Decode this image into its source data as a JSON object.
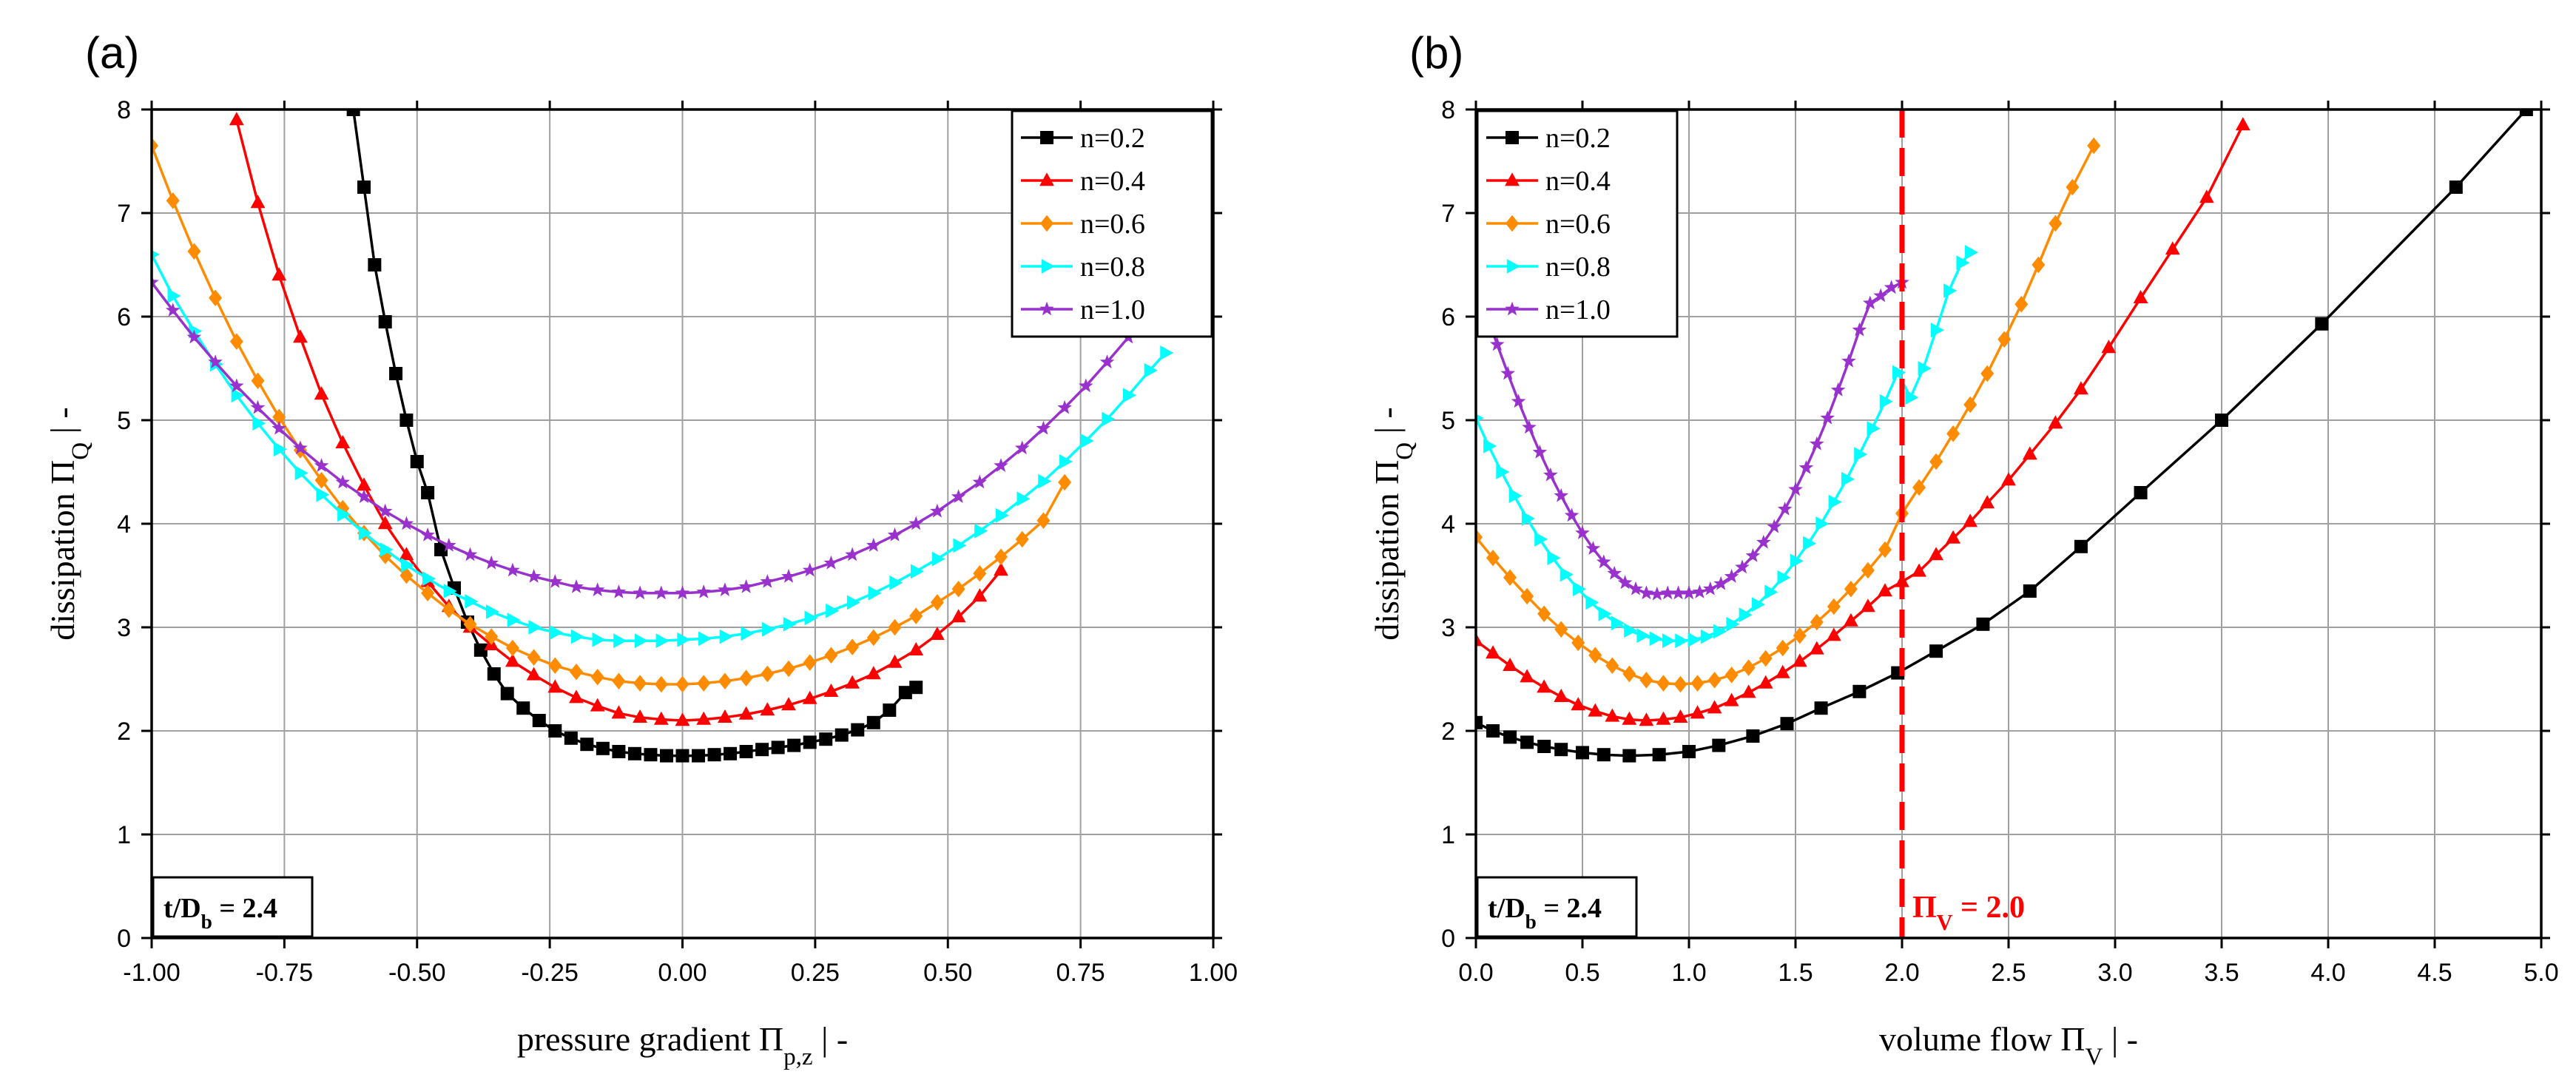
{
  "panels": [
    {
      "panel_label": "(a)",
      "annotation": {
        "main": "t/D",
        "sub": "b",
        "value": " = 2.4"
      },
      "legend": [
        "n=0.2",
        "n=0.4",
        "n=0.6",
        "n=0.8",
        "n=1.0"
      ]
    },
    {
      "panel_label": "(b)",
      "annotation": {
        "main": "t/D",
        "sub": "b",
        "value": " = 2.4"
      },
      "legend": [
        "n=0.2",
        "n=0.4",
        "n=0.6",
        "n=0.8",
        "n=1.0"
      ],
      "vline_label": {
        "main": "Π",
        "sub": "V",
        "value": " = 2.0"
      }
    }
  ],
  "colors": {
    "n=0.2": "#000000",
    "n=0.4": "#ff0000",
    "n=0.6": "#ff8c00",
    "n=0.8": "#00ffff",
    "n=1.0": "#9932cc",
    "vline": "#ff0000"
  },
  "chart_data": [
    {
      "type": "line",
      "xlabel": {
        "main": "pressure gradient Π",
        "sub": "p,z",
        "tail": " | -"
      },
      "ylabel": {
        "main": "dissipation Π",
        "sub": "Q",
        "tail": " | -"
      },
      "xlim": [
        -1.0,
        1.0
      ],
      "ylim": [
        0,
        8
      ],
      "xticks": [
        -1.0,
        -0.75,
        -0.5,
        -0.25,
        0.0,
        0.25,
        0.5,
        0.75,
        1.0
      ],
      "xtick_labels": [
        "-1.00",
        "-0.75",
        "-0.50",
        "-0.25",
        "0.00",
        "0.25",
        "0.50",
        "0.75",
        "1.00"
      ],
      "yticks": [
        0,
        1,
        2,
        3,
        4,
        5,
        6,
        7,
        8
      ],
      "ytick_labels": [
        "0",
        "1",
        "2",
        "3",
        "4",
        "5",
        "6",
        "7",
        "8"
      ],
      "grid": true,
      "legend_position": "top-right",
      "series": [
        {
          "name": "n=0.2",
          "marker": "square",
          "x": [
            -0.62,
            -0.6,
            -0.58,
            -0.56,
            -0.54,
            -0.52,
            -0.5,
            -0.48,
            -0.455,
            -0.43,
            -0.405,
            -0.38,
            -0.355,
            -0.33,
            -0.3,
            -0.27,
            -0.24,
            -0.21,
            -0.18,
            -0.15,
            -0.12,
            -0.09,
            -0.06,
            -0.03,
            0.0,
            0.03,
            0.06,
            0.09,
            0.12,
            0.15,
            0.18,
            0.21,
            0.24,
            0.27,
            0.3,
            0.33,
            0.36,
            0.39,
            0.42,
            0.44
          ],
          "y": [
            8.0,
            7.25,
            6.5,
            5.95,
            5.45,
            5.0,
            4.6,
            4.3,
            3.75,
            3.38,
            3.05,
            2.78,
            2.55,
            2.36,
            2.22,
            2.1,
            2.0,
            1.93,
            1.87,
            1.83,
            1.8,
            1.78,
            1.77,
            1.76,
            1.76,
            1.76,
            1.77,
            1.78,
            1.8,
            1.82,
            1.84,
            1.86,
            1.89,
            1.92,
            1.96,
            2.01,
            2.08,
            2.2,
            2.37,
            2.42
          ],
          "markers": [
            1,
            4,
            6,
            9,
            10,
            11,
            12,
            13,
            14,
            15,
            16,
            17,
            18,
            19,
            20,
            21,
            22,
            23,
            24,
            25,
            26,
            27,
            28,
            29,
            30,
            31,
            32,
            33,
            34,
            35,
            36,
            37,
            38,
            39
          ]
        },
        {
          "name": "n=0.4",
          "marker": "triangle-up",
          "x": [
            -0.84,
            -0.8,
            -0.76,
            -0.72,
            -0.68,
            -0.64,
            -0.6,
            -0.56,
            -0.52,
            -0.48,
            -0.44,
            -0.4,
            -0.36,
            -0.32,
            -0.28,
            -0.24,
            -0.2,
            -0.16,
            -0.12,
            -0.08,
            -0.04,
            0.0,
            0.04,
            0.08,
            0.12,
            0.16,
            0.2,
            0.24,
            0.28,
            0.32,
            0.36,
            0.4,
            0.44,
            0.48,
            0.52,
            0.56,
            0.6
          ],
          "y": [
            7.9,
            7.1,
            6.4,
            5.8,
            5.25,
            4.78,
            4.37,
            4.0,
            3.7,
            3.44,
            3.2,
            3.0,
            2.83,
            2.67,
            2.54,
            2.42,
            2.32,
            2.24,
            2.17,
            2.13,
            2.11,
            2.1,
            2.11,
            2.13,
            2.16,
            2.2,
            2.25,
            2.31,
            2.38,
            2.46,
            2.55,
            2.66,
            2.78,
            2.93,
            3.1,
            3.3,
            3.55
          ]
        },
        {
          "name": "n=0.6",
          "marker": "diamond",
          "x": [
            -1.0,
            -0.96,
            -0.92,
            -0.88,
            -0.84,
            -0.8,
            -0.76,
            -0.72,
            -0.68,
            -0.64,
            -0.6,
            -0.56,
            -0.52,
            -0.48,
            -0.44,
            -0.4,
            -0.36,
            -0.32,
            -0.28,
            -0.24,
            -0.2,
            -0.16,
            -0.12,
            -0.08,
            -0.04,
            0.0,
            0.04,
            0.08,
            0.12,
            0.16,
            0.2,
            0.24,
            0.28,
            0.32,
            0.36,
            0.4,
            0.44,
            0.48,
            0.52,
            0.56,
            0.6,
            0.64,
            0.68,
            0.72
          ],
          "y": [
            7.65,
            7.12,
            6.63,
            6.18,
            5.76,
            5.38,
            5.03,
            4.71,
            4.42,
            4.15,
            3.91,
            3.69,
            3.5,
            3.33,
            3.17,
            3.03,
            2.91,
            2.8,
            2.71,
            2.63,
            2.57,
            2.52,
            2.48,
            2.46,
            2.45,
            2.45,
            2.46,
            2.48,
            2.51,
            2.55,
            2.6,
            2.66,
            2.73,
            2.81,
            2.9,
            3.0,
            3.11,
            3.24,
            3.37,
            3.52,
            3.68,
            3.85,
            4.03,
            4.4
          ]
        },
        {
          "name": "n=0.8",
          "marker": "triangle-right",
          "x": [
            -1.0,
            -0.96,
            -0.92,
            -0.88,
            -0.84,
            -0.8,
            -0.76,
            -0.72,
            -0.68,
            -0.64,
            -0.6,
            -0.56,
            -0.52,
            -0.48,
            -0.44,
            -0.4,
            -0.36,
            -0.32,
            -0.28,
            -0.24,
            -0.2,
            -0.16,
            -0.12,
            -0.08,
            -0.04,
            0.0,
            0.04,
            0.08,
            0.12,
            0.16,
            0.2,
            0.24,
            0.28,
            0.32,
            0.36,
            0.4,
            0.44,
            0.48,
            0.52,
            0.56,
            0.6,
            0.64,
            0.68,
            0.72,
            0.76,
            0.8,
            0.84,
            0.88,
            0.91
          ],
          "y": [
            6.6,
            6.2,
            5.86,
            5.54,
            5.24,
            4.97,
            4.72,
            4.49,
            4.28,
            4.09,
            3.91,
            3.75,
            3.6,
            3.47,
            3.35,
            3.25,
            3.15,
            3.07,
            3.0,
            2.95,
            2.91,
            2.88,
            2.87,
            2.87,
            2.87,
            2.88,
            2.89,
            2.91,
            2.94,
            2.98,
            3.03,
            3.09,
            3.16,
            3.24,
            3.33,
            3.43,
            3.54,
            3.66,
            3.79,
            3.93,
            4.08,
            4.24,
            4.41,
            4.6,
            4.8,
            5.01,
            5.24,
            5.48,
            5.65
          ]
        },
        {
          "name": "n=1.0",
          "marker": "star",
          "x": [
            -1.0,
            -0.96,
            -0.92,
            -0.88,
            -0.84,
            -0.8,
            -0.76,
            -0.72,
            -0.68,
            -0.64,
            -0.6,
            -0.56,
            -0.52,
            -0.48,
            -0.44,
            -0.4,
            -0.36,
            -0.32,
            -0.28,
            -0.24,
            -0.2,
            -0.16,
            -0.12,
            -0.08,
            -0.04,
            0.0,
            0.04,
            0.08,
            0.12,
            0.16,
            0.2,
            0.24,
            0.28,
            0.32,
            0.36,
            0.4,
            0.44,
            0.48,
            0.52,
            0.56,
            0.6,
            0.64,
            0.68,
            0.72,
            0.76,
            0.8,
            0.84,
            0.88,
            0.92,
            0.96,
            1.0
          ],
          "y": [
            6.33,
            6.06,
            5.8,
            5.56,
            5.33,
            5.12,
            4.92,
            4.73,
            4.56,
            4.4,
            4.26,
            4.12,
            4.0,
            3.89,
            3.79,
            3.7,
            3.62,
            3.55,
            3.49,
            3.44,
            3.39,
            3.36,
            3.34,
            3.33,
            3.33,
            3.33,
            3.34,
            3.36,
            3.39,
            3.44,
            3.49,
            3.55,
            3.62,
            3.7,
            3.79,
            3.89,
            4.0,
            4.12,
            4.26,
            4.4,
            4.56,
            4.73,
            4.92,
            5.12,
            5.33,
            5.56,
            5.8,
            6.06,
            6.33,
            6.33,
            6.33
          ]
        }
      ]
    },
    {
      "type": "line",
      "xlabel": {
        "main": "volume flow Π",
        "sub": "V",
        "tail": " | -"
      },
      "ylabel": {
        "main": "dissipation Π",
        "sub": "Q",
        "tail": " | -"
      },
      "xlim": [
        0,
        5.0
      ],
      "ylim": [
        0,
        8
      ],
      "xticks": [
        0,
        0.5,
        1.0,
        1.5,
        2.0,
        2.5,
        3.0,
        3.5,
        4.0,
        4.5,
        5.0
      ],
      "xtick_labels": [
        "0.0",
        "0.5",
        "1.0",
        "1.5",
        "2.0",
        "2.5",
        "3.0",
        "3.5",
        "4.0",
        "4.5",
        "5.0"
      ],
      "yticks": [
        0,
        1,
        2,
        3,
        4,
        5,
        6,
        7,
        8
      ],
      "ytick_labels": [
        "0",
        "1",
        "2",
        "3",
        "4",
        "5",
        "6",
        "7",
        "8"
      ],
      "grid": true,
      "legend_position": "top-left",
      "vline_x": 2.0,
      "series": [
        {
          "name": "n=0.2",
          "marker": "square",
          "x": [
            0.0,
            0.08,
            0.16,
            0.24,
            0.32,
            0.4,
            0.5,
            0.6,
            0.72,
            0.86,
            1.0,
            1.14,
            1.3,
            1.46,
            1.62,
            1.8,
            1.98,
            2.16,
            2.38,
            2.6,
            2.84,
            3.12,
            3.5,
            3.97,
            4.6,
            4.93
          ],
          "y": [
            2.08,
            2.0,
            1.94,
            1.89,
            1.85,
            1.82,
            1.79,
            1.77,
            1.76,
            1.77,
            1.8,
            1.86,
            1.95,
            2.07,
            2.22,
            2.38,
            2.56,
            2.77,
            3.03,
            3.35,
            3.78,
            4.3,
            5.0,
            5.93,
            7.25,
            8.0
          ]
        },
        {
          "name": "n=0.4",
          "marker": "triangle-up",
          "x": [
            0.0,
            0.08,
            0.16,
            0.24,
            0.32,
            0.4,
            0.48,
            0.56,
            0.64,
            0.72,
            0.8,
            0.88,
            0.96,
            1.04,
            1.12,
            1.2,
            1.28,
            1.36,
            1.44,
            1.52,
            1.6,
            1.68,
            1.76,
            1.84,
            1.92,
            2.0,
            2.08,
            2.16,
            2.24,
            2.32,
            2.4,
            2.5,
            2.6,
            2.72,
            2.84,
            2.97,
            3.12,
            3.27,
            3.43,
            3.6
          ],
          "y": [
            2.87,
            2.75,
            2.63,
            2.52,
            2.42,
            2.33,
            2.25,
            2.19,
            2.14,
            2.11,
            2.1,
            2.11,
            2.13,
            2.17,
            2.22,
            2.29,
            2.37,
            2.46,
            2.56,
            2.67,
            2.79,
            2.92,
            3.06,
            3.2,
            3.35,
            3.44,
            3.54,
            3.7,
            3.86,
            4.02,
            4.2,
            4.42,
            4.67,
            4.97,
            5.3,
            5.7,
            6.18,
            6.65,
            7.15,
            7.85
          ]
        },
        {
          "name": "n=0.6",
          "marker": "diamond",
          "x": [
            0.0,
            0.08,
            0.16,
            0.24,
            0.32,
            0.4,
            0.48,
            0.56,
            0.64,
            0.72,
            0.8,
            0.88,
            0.96,
            1.04,
            1.12,
            1.2,
            1.28,
            1.36,
            1.44,
            1.52,
            1.6,
            1.68,
            1.76,
            1.84,
            1.92,
            2.0,
            2.08,
            2.16,
            2.24,
            2.32,
            2.4,
            2.48,
            2.56,
            2.64,
            2.72,
            2.8,
            2.9
          ],
          "y": [
            3.87,
            3.67,
            3.48,
            3.3,
            3.13,
            2.98,
            2.85,
            2.73,
            2.63,
            2.55,
            2.49,
            2.46,
            2.45,
            2.46,
            2.49,
            2.54,
            2.61,
            2.7,
            2.8,
            2.92,
            3.05,
            3.2,
            3.37,
            3.55,
            3.75,
            4.1,
            4.35,
            4.6,
            4.87,
            5.15,
            5.45,
            5.78,
            6.12,
            6.5,
            6.9,
            7.25,
            7.65
          ]
        },
        {
          "name": "n=0.8",
          "marker": "triangle-right",
          "x": [
            0.0,
            0.06,
            0.12,
            0.18,
            0.24,
            0.3,
            0.36,
            0.42,
            0.48,
            0.54,
            0.6,
            0.66,
            0.72,
            0.78,
            0.84,
            0.9,
            0.96,
            1.02,
            1.08,
            1.14,
            1.2,
            1.26,
            1.32,
            1.38,
            1.44,
            1.5,
            1.56,
            1.62,
            1.68,
            1.74,
            1.8,
            1.86,
            1.92,
            1.98,
            2.04,
            2.1,
            2.16,
            2.22,
            2.28,
            2.32
          ],
          "y": [
            5.02,
            4.75,
            4.5,
            4.27,
            4.05,
            3.85,
            3.67,
            3.51,
            3.37,
            3.24,
            3.13,
            3.04,
            2.97,
            2.92,
            2.89,
            2.87,
            2.87,
            2.88,
            2.91,
            2.96,
            3.03,
            3.12,
            3.22,
            3.34,
            3.48,
            3.64,
            3.81,
            4.0,
            4.21,
            4.43,
            4.67,
            4.92,
            5.18,
            5.46,
            5.22,
            5.5,
            5.87,
            6.25,
            6.52,
            6.62
          ]
        },
        {
          "name": "n=1.0",
          "marker": "star",
          "x": [
            0.0,
            0.05,
            0.1,
            0.15,
            0.2,
            0.25,
            0.3,
            0.35,
            0.4,
            0.45,
            0.5,
            0.55,
            0.6,
            0.65,
            0.7,
            0.75,
            0.8,
            0.85,
            0.9,
            0.95,
            1.0,
            1.05,
            1.1,
            1.15,
            1.2,
            1.25,
            1.3,
            1.35,
            1.4,
            1.45,
            1.5,
            1.55,
            1.6,
            1.65,
            1.7,
            1.75,
            1.8,
            1.85,
            1.9,
            1.95,
            2.0
          ],
          "y": [
            6.33,
            6.02,
            5.73,
            5.45,
            5.18,
            4.93,
            4.69,
            4.47,
            4.27,
            4.08,
            3.91,
            3.76,
            3.63,
            3.52,
            3.43,
            3.37,
            3.33,
            3.32,
            3.33,
            3.33,
            3.33,
            3.34,
            3.37,
            3.42,
            3.49,
            3.58,
            3.69,
            3.82,
            3.97,
            4.14,
            4.33,
            4.54,
            4.77,
            5.02,
            5.29,
            5.57,
            5.87,
            6.13,
            6.2,
            6.28,
            6.33
          ]
        }
      ]
    }
  ]
}
